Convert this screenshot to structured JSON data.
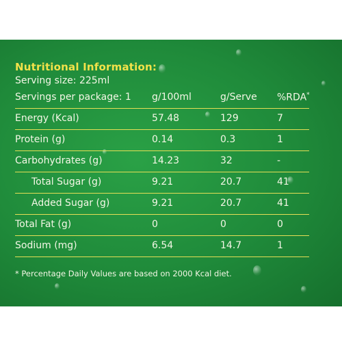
{
  "title": "Nutritional Information:",
  "serving_size": "Serving size: 225ml",
  "servings_per_package": "Servings per package: 1",
  "columns": [
    "g/100ml",
    "g/Serve",
    "%RDA"
  ],
  "rda_marker": "*",
  "rows": [
    {
      "name": "Energy (Kcal)",
      "per100": "57.48",
      "serve": "129",
      "rda": "7"
    },
    {
      "name": "Protein (g)",
      "per100": "0.14",
      "serve": "0.3",
      "rda": "1"
    },
    {
      "name": "Carbohydrates (g)",
      "per100": "14.23",
      "serve": "32",
      "rda": "-"
    },
    {
      "name": "Total Sugar (g)",
      "per100": "9.21",
      "serve": "20.7",
      "rda": "41"
    },
    {
      "name": "Added Sugar (g)",
      "per100": "9.21",
      "serve": "20.7",
      "rda": "41"
    },
    {
      "name": "Total Fat (g)",
      "per100": "0",
      "serve": "0",
      "rda": "0"
    },
    {
      "name": "Sodium (mg)",
      "per100": "6.54",
      "serve": "14.7",
      "rda": "1"
    }
  ],
  "footnote": "* Percentage Daily Values are based on 2000 Kcal diet.",
  "colors": {
    "panel": "#1f8a3a",
    "title": "#f2e24a",
    "rule": "#e6df56",
    "text": "#f4f7e6"
  }
}
